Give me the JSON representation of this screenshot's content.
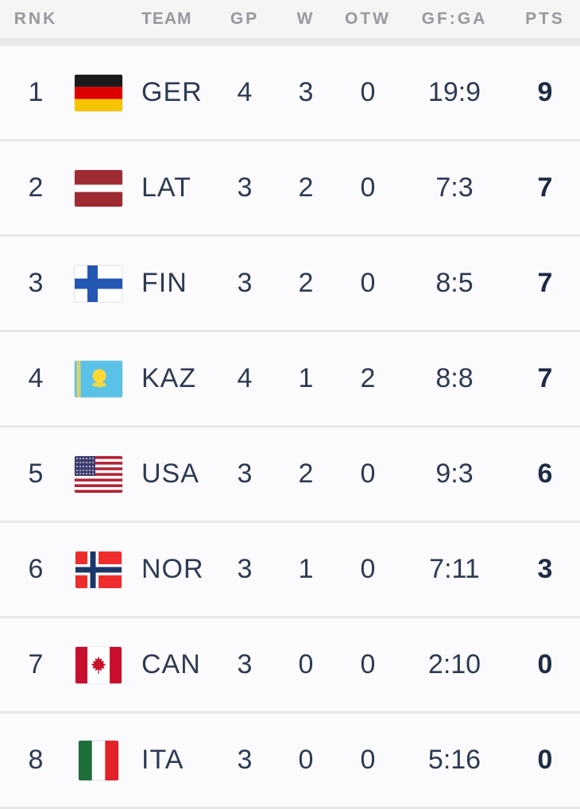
{
  "table": {
    "columns": [
      {
        "key": "rank",
        "label": "RNK"
      },
      {
        "key": "flag",
        "label": ""
      },
      {
        "key": "team",
        "label": "TEAM"
      },
      {
        "key": "gp",
        "label": "GP"
      },
      {
        "key": "w",
        "label": "W"
      },
      {
        "key": "otw",
        "label": "OTW"
      },
      {
        "key": "gf_ga",
        "label": "GF:GA"
      },
      {
        "key": "pts",
        "label": "PTS"
      }
    ],
    "rows": [
      {
        "rank": "1",
        "flag": "ger",
        "flag_icon": "ger-flag-icon",
        "team": "GER",
        "gp": "4",
        "w": "3",
        "otw": "0",
        "gf_ga": "19:9",
        "pts": "9"
      },
      {
        "rank": "2",
        "flag": "lat",
        "flag_icon": "lat-flag-icon",
        "team": "LAT",
        "gp": "3",
        "w": "2",
        "otw": "0",
        "gf_ga": "7:3",
        "pts": "7"
      },
      {
        "rank": "3",
        "flag": "fin",
        "flag_icon": "fin-flag-icon",
        "team": "FIN",
        "gp": "3",
        "w": "2",
        "otw": "0",
        "gf_ga": "8:5",
        "pts": "7"
      },
      {
        "rank": "4",
        "flag": "kaz",
        "flag_icon": "kaz-flag-icon",
        "team": "KAZ",
        "gp": "4",
        "w": "1",
        "otw": "2",
        "gf_ga": "8:8",
        "pts": "7"
      },
      {
        "rank": "5",
        "flag": "usa",
        "flag_icon": "usa-flag-icon",
        "team": "USA",
        "gp": "3",
        "w": "2",
        "otw": "0",
        "gf_ga": "9:3",
        "pts": "6"
      },
      {
        "rank": "6",
        "flag": "nor",
        "flag_icon": "nor-flag-icon",
        "team": "NOR",
        "gp": "3",
        "w": "1",
        "otw": "0",
        "gf_ga": "7:11",
        "pts": "3"
      },
      {
        "rank": "7",
        "flag": "can",
        "flag_icon": "can-flag-icon",
        "team": "CAN",
        "gp": "3",
        "w": "0",
        "otw": "0",
        "gf_ga": "2:10",
        "pts": "0"
      },
      {
        "rank": "8",
        "flag": "ita",
        "flag_icon": "ita-flag-icon",
        "team": "ITA",
        "gp": "3",
        "w": "0",
        "otw": "0",
        "gf_ga": "5:16",
        "pts": "0"
      }
    ]
  },
  "colors": {
    "header_bg": "#f4f5f5",
    "header_band": "#e9eaec",
    "header_text": "#97999e",
    "row_bg": "#fbfbfd",
    "row_separator": "#e5e6e8",
    "body_text": "#2d3a52",
    "pts_text": "#1d2b45"
  }
}
